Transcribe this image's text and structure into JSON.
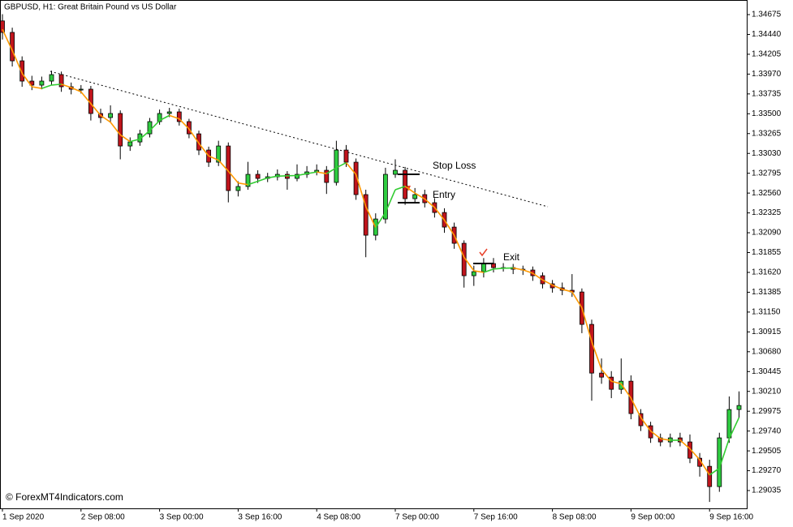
{
  "chart_data": {
    "type": "candlestick",
    "title": "GBPUSD, H1:  Great Britain Pound vs US Dollar",
    "watermark": "© ForexMT4Indicators.com",
    "categories": [
      "1 Sep 2020",
      null,
      null,
      null,
      null,
      null,
      null,
      null,
      "2 Sep 08:00",
      null,
      null,
      null,
      null,
      null,
      null,
      null,
      "3 Sep 00:00",
      null,
      null,
      null,
      null,
      null,
      null,
      null,
      "3 Sep 16:00",
      null,
      null,
      null,
      null,
      null,
      null,
      null,
      "4 Sep 08:00",
      null,
      null,
      null,
      null,
      null,
      null,
      null,
      "7 Sep 00:00",
      null,
      null,
      null,
      null,
      null,
      null,
      null,
      "7 Sep 16:00",
      null,
      null,
      null,
      null,
      null,
      null,
      null,
      "8 Sep 08:00",
      null,
      null,
      null,
      null,
      null,
      null,
      null,
      "9 Sep 00:00",
      null,
      null,
      null,
      null,
      null,
      null,
      null,
      "9 Sep 16:00",
      null,
      null,
      null
    ],
    "open": [
      1.346,
      1.34464,
      1.34127,
      1.33887,
      1.33839,
      1.33887,
      1.33964,
      1.3382,
      1.33791,
      1.33791,
      1.33503,
      1.33455,
      1.33503,
      1.33118,
      1.33166,
      1.33262,
      1.33407,
      1.33503,
      1.33522,
      1.33407,
      1.33262,
      1.3307,
      1.32926,
      1.33118,
      1.3259,
      1.32638,
      1.32782,
      1.32734,
      1.32753,
      1.32782,
      1.32734,
      1.32782,
      1.32811,
      1.3283,
      1.32686,
      1.3307,
      1.32926,
      1.32542,
      1.32061,
      1.32253,
      1.32782,
      1.3283,
      1.32494,
      1.32542,
      1.32446,
      1.3233,
      1.32157,
      1.31965,
      1.31581,
      1.31629,
      1.31725,
      1.31677,
      1.31677,
      1.31658,
      1.31648,
      1.31581,
      1.31485,
      1.31437,
      1.31408,
      1.31388,
      1.31004,
      1.30427,
      1.30379,
      1.30235,
      1.30331,
      1.29947,
      1.29803,
      1.29659,
      1.29611,
      1.29659,
      1.29611,
      1.29418,
      1.29322,
      1.29082,
      1.29659,
      1.29995
    ],
    "high": [
      1.3468,
      1.3452,
      1.3418,
      1.3395,
      1.3394,
      1.3401,
      1.34,
      1.3387,
      1.3384,
      1.3383,
      1.3356,
      1.336,
      1.3354,
      1.3322,
      1.3331,
      1.3345,
      1.3355,
      1.3357,
      1.3356,
      1.3344,
      1.333,
      1.3311,
      1.3318,
      1.3316,
      1.327,
      1.3293,
      1.3283,
      1.328,
      1.3284,
      1.3282,
      1.329,
      1.3288,
      1.329,
      1.3288,
      1.3318,
      1.3313,
      1.3297,
      1.326,
      1.3232,
      1.3286,
      1.3296,
      1.3287,
      1.3262,
      1.326,
      1.325,
      1.3238,
      1.3221,
      1.32,
      1.317,
      1.3179,
      1.3179,
      1.3173,
      1.3172,
      1.317,
      1.3169,
      1.3162,
      1.3153,
      1.315,
      1.316,
      1.3143,
      1.3106,
      1.306,
      1.3045,
      1.306,
      1.304,
      1.3,
      1.2985,
      1.2971,
      1.2971,
      1.2972,
      1.297,
      1.2948,
      1.294,
      1.2972,
      1.3015,
      1.3021
    ],
    "low": [
      1.3438,
      1.3406,
      1.3382,
      1.3378,
      1.3379,
      1.3384,
      1.3376,
      1.3373,
      1.3374,
      1.3342,
      1.3339,
      1.334,
      1.3296,
      1.3306,
      1.3312,
      1.3322,
      1.3337,
      1.3346,
      1.3336,
      1.3321,
      1.3301,
      1.3287,
      1.3288,
      1.3245,
      1.3252,
      1.326,
      1.3268,
      1.3269,
      1.3271,
      1.326,
      1.327,
      1.3274,
      1.3277,
      1.3255,
      1.3265,
      1.3287,
      1.3248,
      1.318,
      1.32,
      1.322,
      1.3274,
      1.3242,
      1.3244,
      1.3239,
      1.3227,
      1.3209,
      1.319,
      1.3144,
      1.3146,
      1.3156,
      1.3162,
      1.3163,
      1.316,
      1.3159,
      1.3152,
      1.3143,
      1.3138,
      1.3135,
      1.3133,
      1.309,
      1.301,
      1.303,
      1.3013,
      1.3018,
      1.2988,
      1.2974,
      1.296,
      1.2956,
      1.2955,
      1.2956,
      1.2936,
      1.292,
      1.289,
      1.2902,
      1.296,
      1.299
    ],
    "close": [
      1.34464,
      1.34127,
      1.33887,
      1.33839,
      1.33887,
      1.33964,
      1.3382,
      1.33791,
      1.33791,
      1.33503,
      1.33455,
      1.33503,
      1.33118,
      1.33166,
      1.33262,
      1.33407,
      1.33503,
      1.33522,
      1.33407,
      1.33262,
      1.3307,
      1.32926,
      1.33118,
      1.3259,
      1.32638,
      1.32782,
      1.32734,
      1.32753,
      1.32782,
      1.32734,
      1.32782,
      1.32811,
      1.3283,
      1.32686,
      1.3307,
      1.32926,
      1.32542,
      1.32061,
      1.32253,
      1.32782,
      1.3283,
      1.32494,
      1.32542,
      1.32446,
      1.3233,
      1.32157,
      1.31965,
      1.31581,
      1.31629,
      1.31725,
      1.31677,
      1.31677,
      1.31658,
      1.31648,
      1.31581,
      1.31485,
      1.31437,
      1.31408,
      1.31388,
      1.31004,
      1.30427,
      1.30379,
      1.30235,
      1.30331,
      1.29947,
      1.29803,
      1.29659,
      1.29611,
      1.29659,
      1.29611,
      1.29418,
      1.29322,
      1.29082,
      1.29659,
      1.29995,
      1.30043
    ],
    "up_color": "#2ecc40",
    "down_color": "#c0141c",
    "ma": {
      "up_color": "#33cc33",
      "down_color": "#ff9900",
      "values": [
        1.345,
        1.3425,
        1.3398,
        1.3382,
        1.338,
        1.3384,
        1.3385,
        1.3381,
        1.3376,
        1.3362,
        1.3348,
        1.334,
        1.3325,
        1.3317,
        1.332,
        1.333,
        1.3342,
        1.3348,
        1.3344,
        1.3332,
        1.3315,
        1.33,
        1.3295,
        1.3282,
        1.3268,
        1.3266,
        1.327,
        1.3274,
        1.3276,
        1.32765,
        1.32768,
        1.3279,
        1.3281,
        1.3279,
        1.3286,
        1.3292,
        1.3278,
        1.324,
        1.3215,
        1.3233,
        1.326,
        1.3264,
        1.3256,
        1.3249,
        1.3239,
        1.3224,
        1.3206,
        1.318,
        1.3164,
        1.3162,
        1.3166,
        1.3167,
        1.31672,
        1.3165,
        1.3161,
        1.3153,
        1.3147,
        1.3142,
        1.3139,
        1.312,
        1.308,
        1.3047,
        1.3033,
        1.303,
        1.3013,
        1.299,
        1.2974,
        1.2965,
        1.2963,
        1.29632,
        1.2953,
        1.294,
        1.2922,
        1.293,
        1.2965,
        1.299
      ]
    },
    "annotations": [
      {
        "text": "Stop Loss",
        "value": 1.32782
      },
      {
        "text": "Entry",
        "value": 1.32446
      },
      {
        "text": "Exit",
        "value": 1.31725
      }
    ],
    "ylim": [
      1.28824,
      1.34848
    ],
    "yticks": [
      1.34675,
      {
        "value": 1.3444,
        "label": "1.34440"
      },
      1.34205,
      {
        "value": 1.3397,
        "label": "1.33970"
      },
      1.33735,
      {
        "value": 1.335,
        "label": "1.33500"
      },
      1.33265,
      {
        "value": 1.3303,
        "label": "1.33030"
      },
      1.32795,
      {
        "value": 1.3256,
        "label": "1.32560"
      },
      1.32325,
      {
        "value": 1.3209,
        "label": "1.32090"
      },
      1.31855,
      {
        "value": 1.3162,
        "label": "1.31620"
      },
      1.31385,
      {
        "value": 1.3115,
        "label": "1.31150"
      },
      1.30915,
      {
        "value": 1.3068,
        "label": "1.30680"
      },
      1.30445,
      {
        "value": 1.3021,
        "label": "1.30210"
      },
      1.29975,
      {
        "value": 1.2974,
        "label": "1.29740"
      },
      1.29505,
      {
        "value": 1.2927,
        "label": "1.29270"
      },
      1.29035
    ],
    "grid": false
  }
}
